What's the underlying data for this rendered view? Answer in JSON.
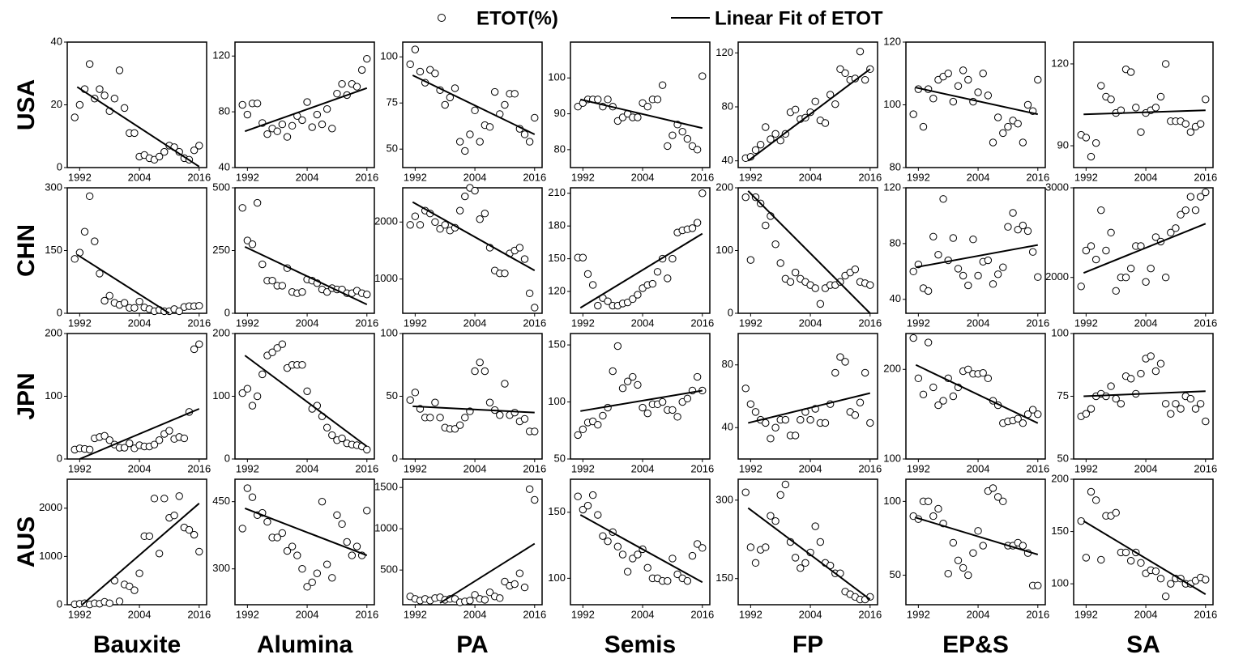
{
  "legend": [
    "ETOT(%)",
    "Linear Fit of ETOT"
  ],
  "rows": [
    "USA",
    "CHN",
    "JPN",
    "AUS"
  ],
  "columns": [
    "Bauxite",
    "Alumina",
    "PA",
    "Semis",
    "FP",
    "EP&S",
    "SA"
  ],
  "x": [
    1991,
    1992,
    1993,
    1994,
    1995,
    1996,
    1997,
    1998,
    1999,
    2000,
    2001,
    2002,
    2003,
    2004,
    2005,
    2006,
    2007,
    2008,
    2009,
    2010,
    2011,
    2012,
    2013,
    2014,
    2015,
    2016
  ],
  "xlim": [
    1989.5,
    2017.5
  ],
  "xticks": [
    1992,
    2004,
    2016
  ],
  "chart_data": [
    {
      "type": "scatter",
      "ylim": [
        0,
        40
      ],
      "yticks": [
        0,
        20,
        40
      ],
      "values": [
        16,
        20,
        25,
        33,
        22,
        25,
        23,
        18,
        22,
        31,
        19,
        11,
        11,
        3.5,
        4,
        3,
        2.5,
        3.5,
        5,
        7,
        6.5,
        5,
        3,
        2.5,
        5.5,
        7
      ],
      "fit": {
        "x": [
          1991.5,
          2016
        ],
        "values": [
          25.7,
          0.3
        ]
      }
    },
    {
      "type": "scatter",
      "ylim": [
        40,
        130
      ],
      "yticks": [
        40,
        80,
        120
      ],
      "values": [
        85,
        78,
        86,
        86,
        72,
        64,
        68,
        66,
        71,
        62,
        70,
        77,
        74,
        87,
        69,
        78,
        71,
        82,
        68,
        93,
        100,
        92,
        100,
        98,
        110,
        118
      ],
      "fit": {
        "x": [
          1991.5,
          2016
        ],
        "values": [
          66,
          97
        ]
      }
    },
    {
      "type": "scatter",
      "ylim": [
        40,
        108
      ],
      "yticks": [
        50,
        75,
        100
      ],
      "values": [
        96,
        104,
        92,
        86,
        93,
        91,
        82,
        74,
        78,
        83,
        54,
        49,
        58,
        71,
        54,
        63,
        62,
        81,
        69,
        74,
        80,
        80,
        61,
        58,
        54,
        67
      ],
      "fit": {
        "x": [
          1991.5,
          2016
        ],
        "values": [
          90,
          58
        ]
      }
    },
    {
      "type": "scatter",
      "ylim": [
        75,
        110
      ],
      "yticks": [
        80,
        90,
        100
      ],
      "values": [
        92,
        93,
        94,
        94,
        94,
        92,
        94,
        92,
        88,
        89,
        90,
        89,
        89,
        93,
        92,
        94,
        94,
        98,
        81,
        84,
        87,
        85,
        83,
        81,
        80,
        100.5
      ],
      "fit": {
        "x": [
          1991.5,
          2016
        ],
        "values": [
          94,
          86
        ]
      }
    },
    {
      "type": "scatter",
      "ylim": [
        35,
        128
      ],
      "yticks": [
        40,
        80,
        120
      ],
      "values": [
        42,
        43,
        48,
        52,
        65,
        56,
        60,
        55,
        60,
        76,
        78,
        71,
        72,
        76,
        84,
        70,
        68,
        89,
        82,
        108,
        105,
        100,
        101,
        121,
        100,
        108
      ],
      "fit": {
        "x": [
          1991.5,
          2016
        ],
        "values": [
          40,
          108
        ]
      }
    },
    {
      "type": "scatter",
      "ylim": [
        80,
        120
      ],
      "yticks": [
        80,
        100,
        120
      ],
      "values": [
        97,
        105,
        93,
        105,
        102,
        108,
        109,
        110,
        101,
        106,
        111,
        108,
        101,
        104,
        110,
        103,
        88,
        96,
        91,
        93,
        95,
        94,
        88,
        100,
        98,
        108
      ],
      "fit": {
        "x": [
          1991.5,
          2016
        ],
        "values": [
          105.5,
          97
        ]
      }
    },
    {
      "type": "scatter",
      "ylim": [
        82,
        128
      ],
      "yticks": [
        90,
        120
      ],
      "values": [
        94,
        93,
        86,
        91,
        112,
        108,
        107,
        102,
        103,
        118,
        117,
        104,
        95,
        102,
        103,
        104,
        108,
        120,
        99,
        99,
        99,
        98,
        95,
        97,
        98,
        107
      ],
      "fit": {
        "x": [
          1991.5,
          2016
        ],
        "values": [
          101.5,
          103
        ]
      }
    },
    {
      "type": "scatter",
      "ylim": [
        0,
        300
      ],
      "yticks": [
        0,
        150,
        300
      ],
      "values": [
        130,
        145,
        195,
        280,
        172,
        95,
        30,
        42,
        25,
        20,
        25,
        13,
        13,
        28,
        14,
        10,
        5,
        8,
        5,
        5,
        10,
        5,
        15,
        17,
        17,
        18
      ],
      "fit": {
        "x": [
          1991.5,
          2010
        ],
        "values": [
          140,
          0
        ]
      }
    },
    {
      "type": "scatter",
      "ylim": [
        0,
        500
      ],
      "yticks": [
        0,
        250,
        500
      ],
      "values": [
        420,
        290,
        275,
        440,
        195,
        130,
        130,
        110,
        110,
        180,
        85,
        80,
        85,
        135,
        130,
        120,
        95,
        85,
        100,
        95,
        95,
        80,
        80,
        90,
        80,
        75
      ],
      "fit": {
        "x": [
          1991.5,
          2016
        ],
        "values": [
          265,
          35
        ]
      }
    },
    {
      "type": "scatter",
      "ylim": [
        400,
        2600
      ],
      "yticks": [
        1000,
        2000
      ],
      "values": [
        1950,
        2100,
        1950,
        2200,
        2150,
        2000,
        1880,
        1950,
        1850,
        1900,
        2200,
        2450,
        2600,
        2550,
        2050,
        2150,
        1550,
        1150,
        1100,
        1100,
        1450,
        1500,
        1550,
        1350,
        750,
        500
      ],
      "fit": {
        "x": [
          1991.5,
          2016
        ],
        "values": [
          2350,
          1150
        ]
      }
    },
    {
      "type": "scatter",
      "ylim": [
        100,
        215
      ],
      "yticks": [
        120,
        150,
        180,
        210
      ],
      "values": [
        151,
        151,
        136,
        126,
        107,
        114,
        111,
        107,
        107,
        109,
        110,
        113,
        117,
        123,
        126,
        127,
        138,
        150,
        132,
        150,
        174,
        176,
        177,
        178,
        183,
        210
      ],
      "fit": {
        "x": [
          1991.5,
          2016
        ],
        "values": [
          105,
          173
        ]
      }
    },
    {
      "type": "scatter",
      "ylim": [
        0,
        200
      ],
      "yticks": [
        0,
        100,
        200
      ],
      "values": [
        185,
        85,
        185,
        175,
        140,
        155,
        110,
        80,
        55,
        50,
        65,
        55,
        50,
        45,
        40,
        15,
        40,
        45,
        45,
        50,
        60,
        65,
        70,
        50,
        48,
        45
      ],
      "fit": {
        "x": [
          1991.5,
          2016
        ],
        "values": [
          195,
          0
        ]
      }
    },
    {
      "type": "scatter",
      "ylim": [
        30,
        120
      ],
      "yticks": [
        40,
        80,
        120
      ],
      "values": [
        60,
        65,
        48,
        46,
        85,
        72,
        112,
        68,
        84,
        62,
        57,
        50,
        83,
        57,
        67,
        68,
        51,
        58,
        63,
        92,
        102,
        90,
        93,
        89,
        74,
        56
      ],
      "fit": {
        "x": [
          1991.5,
          2016
        ],
        "values": [
          63,
          79
        ]
      }
    },
    {
      "type": "scatter",
      "ylim": [
        1600,
        3000
      ],
      "yticks": [
        2000,
        3000
      ],
      "values": [
        1900,
        2300,
        2350,
        2200,
        2750,
        2300,
        2500,
        1850,
        2000,
        2000,
        2100,
        2350,
        2350,
        1950,
        2100,
        2450,
        2400,
        2000,
        2500,
        2550,
        2700,
        2750,
        2900,
        2750,
        2900,
        2950
      ],
      "fit": {
        "x": [
          1991.5,
          2016
        ],
        "values": [
          2050,
          2600
        ]
      }
    },
    {
      "type": "scatter",
      "ylim": [
        0,
        200
      ],
      "yticks": [
        0,
        100,
        200
      ],
      "values": [
        15,
        17,
        16,
        15,
        33,
        35,
        37,
        30,
        23,
        18,
        18,
        25,
        17,
        22,
        20,
        20,
        23,
        30,
        40,
        45,
        32,
        35,
        33,
        75,
        175,
        183
      ],
      "fit": {
        "x": [
          1992,
          2016
        ],
        "values": [
          0,
          80
        ]
      }
    },
    {
      "type": "scatter",
      "ylim": [
        0,
        200
      ],
      "yticks": [
        0,
        100,
        200
      ],
      "values": [
        105,
        112,
        85,
        100,
        135,
        165,
        170,
        177,
        183,
        145,
        150,
        150,
        150,
        108,
        80,
        85,
        68,
        50,
        38,
        30,
        33,
        25,
        23,
        22,
        20,
        15
      ],
      "fit": {
        "x": [
          1991.5,
          2016
        ],
        "values": [
          165,
          20
        ]
      }
    },
    {
      "type": "scatter",
      "ylim": [
        0,
        100
      ],
      "yticks": [
        0,
        50,
        100
      ],
      "values": [
        47,
        53,
        40,
        33,
        33,
        45,
        33,
        25,
        24,
        24,
        27,
        33,
        38,
        70,
        77,
        70,
        45,
        39,
        35,
        60,
        35,
        37,
        30,
        32,
        22,
        22
      ],
      "fit": {
        "x": [
          1991.5,
          2016
        ],
        "values": [
          42,
          37
        ]
      }
    },
    {
      "type": "scatter",
      "ylim": [
        50,
        160
      ],
      "yticks": [
        50,
        100,
        150
      ],
      "values": [
        71,
        76,
        82,
        83,
        80,
        88,
        95,
        127,
        149,
        112,
        118,
        122,
        115,
        95,
        90,
        98,
        98,
        100,
        93,
        93,
        87,
        100,
        103,
        110,
        122,
        110
      ],
      "fit": {
        "x": [
          1991.5,
          2016
        ],
        "values": [
          92,
          110
        ]
      }
    },
    {
      "type": "scatter",
      "ylim": [
        20,
        100
      ],
      "yticks": [
        40,
        80
      ],
      "values": [
        65,
        55,
        50,
        45,
        43,
        33,
        40,
        45,
        45,
        35,
        35,
        45,
        50,
        45,
        52,
        43,
        43,
        55,
        75,
        85,
        82,
        50,
        48,
        56,
        75,
        43
      ],
      "fit": {
        "x": [
          1991.5,
          2016
        ],
        "values": [
          43,
          62
        ]
      }
    },
    {
      "type": "scatter",
      "ylim": [
        100,
        240
      ],
      "yticks": [
        100,
        200
      ],
      "values": [
        235,
        190,
        172,
        230,
        180,
        160,
        165,
        190,
        170,
        180,
        198,
        200,
        195,
        195,
        196,
        190,
        165,
        160,
        140,
        142,
        143,
        145,
        140,
        150,
        155,
        150
      ],
      "fit": {
        "x": [
          1991.5,
          2016
        ],
        "values": [
          205,
          140
        ]
      }
    },
    {
      "type": "scatter",
      "ylim": [
        50,
        100
      ],
      "yticks": [
        50,
        75,
        100
      ],
      "values": [
        67,
        68,
        70,
        75,
        76,
        75,
        79,
        74,
        72,
        83,
        82,
        76,
        84,
        90,
        91,
        85,
        88,
        72,
        68,
        72,
        70,
        75,
        74,
        70,
        72,
        65
      ],
      "fit": {
        "x": [
          1991.5,
          2016
        ],
        "values": [
          75,
          77
        ]
      }
    },
    {
      "type": "scatter",
      "ylim": [
        0,
        2600
      ],
      "yticks": [
        0,
        1000,
        2000
      ],
      "values": [
        10,
        20,
        30,
        5,
        30,
        20,
        60,
        30,
        500,
        70,
        420,
        380,
        300,
        650,
        1420,
        1420,
        2200,
        1060,
        2200,
        1800,
        1850,
        2250,
        1600,
        1550,
        1450,
        1100
      ],
      "fit": {
        "x": [
          1992.5,
          2016
        ],
        "values": [
          0,
          2100
        ]
      }
    },
    {
      "type": "scatter",
      "ylim": [
        220,
        500
      ],
      "yticks": [
        300,
        450
      ],
      "values": [
        390,
        480,
        460,
        420,
        425,
        405,
        370,
        370,
        380,
        340,
        350,
        330,
        300,
        260,
        270,
        290,
        450,
        310,
        280,
        420,
        400,
        360,
        330,
        350,
        330,
        430
      ],
      "fit": {
        "x": [
          1991.5,
          2016
        ],
        "values": [
          435,
          330
        ]
      }
    },
    {
      "type": "scatter",
      "ylim": [
        80,
        1600
      ],
      "yticks": [
        500,
        1000,
        1500
      ],
      "values": [
        180,
        150,
        130,
        150,
        130,
        160,
        170,
        140,
        150,
        150,
        110,
        120,
        130,
        200,
        150,
        140,
        230,
        180,
        160,
        360,
        310,
        330,
        460,
        290,
        1480,
        1350
      ],
      "fit": {
        "x": [
          1997,
          2016
        ],
        "values": [
          100,
          820
        ]
      }
    },
    {
      "type": "scatter",
      "ylim": [
        80,
        175
      ],
      "yticks": [
        100,
        150
      ],
      "values": [
        162,
        152,
        155,
        163,
        148,
        132,
        128,
        135,
        124,
        118,
        105,
        115,
        118,
        122,
        108,
        100,
        100,
        98,
        98,
        115,
        103,
        100,
        98,
        117,
        126,
        123
      ],
      "fit": {
        "x": [
          1991.5,
          2016
        ],
        "values": [
          148,
          97
        ]
      }
    },
    {
      "type": "scatter",
      "ylim": [
        100,
        340
      ],
      "yticks": [
        150,
        300
      ],
      "values": [
        315,
        210,
        180,
        205,
        210,
        270,
        260,
        310,
        330,
        220,
        190,
        170,
        180,
        200,
        250,
        220,
        180,
        175,
        160,
        160,
        125,
        120,
        115,
        110,
        110,
        115
      ],
      "fit": {
        "x": [
          1991.5,
          2016
        ],
        "values": [
          285,
          110
        ]
      }
    },
    {
      "type": "scatter",
      "ylim": [
        30,
        115
      ],
      "yticks": [
        50,
        100
      ],
      "values": [
        90,
        88,
        100,
        100,
        90,
        95,
        85,
        51,
        72,
        60,
        55,
        50,
        65,
        80,
        70,
        107,
        109,
        103,
        100,
        70,
        70,
        72,
        70,
        65,
        43,
        43
      ],
      "fit": {
        "x": [
          1991.5,
          2016
        ],
        "values": [
          89,
          64
        ]
      }
    },
    {
      "type": "scatter",
      "ylim": [
        80,
        200
      ],
      "yticks": [
        100,
        150,
        200
      ],
      "values": [
        160,
        125,
        188,
        180,
        123,
        165,
        165,
        168,
        130,
        130,
        122,
        130,
        120,
        110,
        113,
        112,
        105,
        88,
        100,
        105,
        105,
        100,
        100,
        103,
        106,
        104
      ],
      "fit": {
        "x": [
          1991.5,
          2016
        ],
        "values": [
          160,
          90
        ]
      }
    }
  ]
}
